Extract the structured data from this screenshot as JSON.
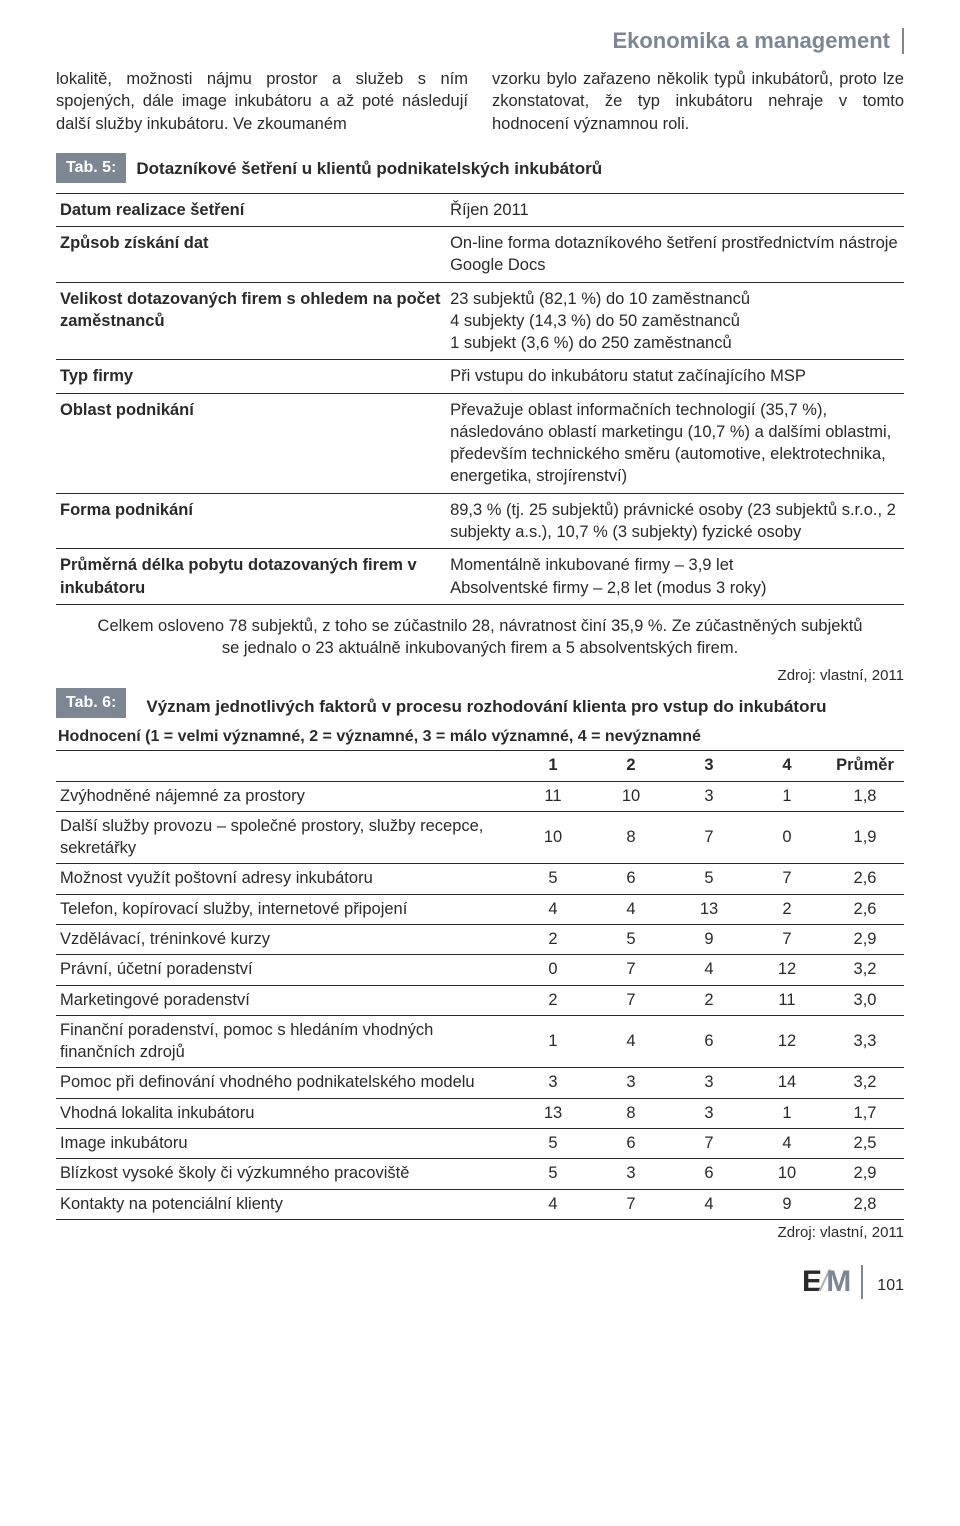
{
  "header": {
    "title": "Ekonomika a management"
  },
  "intro": {
    "left": "lokalitě, možnosti nájmu prostor a služeb s ním spojených, dále image inkubátoru a až poté následují další služby inkubátoru. Ve zkoumaném",
    "right": "vzorku bylo zařazeno několik typů inkubátorů, proto lze zkonstatovat, že typ inkubátoru nehraje v tomto hodnocení významnou roli."
  },
  "tab5": {
    "badge": "Tab. 5:",
    "title": "Dotazníkové šetření u klientů podnikatelských inkubátorů",
    "rows": [
      {
        "label": "Datum realizace šetření",
        "value": "Říjen 2011"
      },
      {
        "label": "Způsob získání dat",
        "value": "On-line forma dotazníkového šetření prostřednictvím nástroje Google Docs"
      },
      {
        "label": "Velikost dotazovaných firem s ohledem na počet zaměstnanců",
        "value": "23 subjektů (82,1 %) do 10 zaměstnanců\n4 subjekty (14,3 %) do 50 zaměstnanců\n1 subjekt (3,6 %) do 250 zaměstnanců"
      },
      {
        "label": "Typ firmy",
        "value": "Při vstupu do inkubátoru statut začínajícího MSP"
      },
      {
        "label": "Oblast podnikání",
        "value": "Převažuje oblast informačních technologií (35,7 %), následováno oblastí marketingu (10,7 %) a dalšími oblastmi, především technického směru (automotive, elektrotechnika, energetika, strojírenství)"
      },
      {
        "label": "Forma podnikání",
        "value": "89,3 % (tj. 25 subjektů) právnické osoby (23 subjektů s.r.o., 2 subjekty a.s.), 10,7 % (3 subjekty) fyzické osoby"
      },
      {
        "label": "Průměrná délka pobytu dotazovaných firem v inkubátoru",
        "value": "Momentálně inkubované firmy – 3,9 let\nAbsolventské firmy – 2,8 let (modus 3 roky)"
      }
    ],
    "footnote": "Celkem osloveno 78 subjektů, z toho se zúčastnilo 28, návratnost činí 35,9 %. Ze zúčastněných subjektů se jednalo o 23 aktuálně inkubovaných firem a 5 absolventských firem.",
    "source": "Zdroj: vlastní, 2011"
  },
  "tab6": {
    "badge": "Tab. 6:",
    "title": "Význam jednotlivých faktorů v procesu rozhodování klienta pro vstup do inkubátoru",
    "caption": "Hodnocení (1 = velmi významné, 2 = významné, 3 = málo významné, 4 = nevýznamné",
    "columns": [
      "",
      "1",
      "2",
      "3",
      "4",
      "Průměr"
    ],
    "rows": [
      {
        "label": "Zvýhodněné nájemné za prostory",
        "v": [
          "11",
          "10",
          "3",
          "1",
          "1,8"
        ]
      },
      {
        "label": "Další služby provozu – společné prostory, služby recepce, sekretářky",
        "v": [
          "10",
          "8",
          "7",
          "0",
          "1,9"
        ]
      },
      {
        "label": "Možnost využít poštovní adresy inkubátoru",
        "v": [
          "5",
          "6",
          "5",
          "7",
          "2,6"
        ]
      },
      {
        "label": "Telefon, kopírovací služby, internetové připojení",
        "v": [
          "4",
          "4",
          "13",
          "2",
          "2,6"
        ]
      },
      {
        "label": "Vzdělávací, tréninkové kurzy",
        "v": [
          "2",
          "5",
          "9",
          "7",
          "2,9"
        ]
      },
      {
        "label": "Právní, účetní poradenství",
        "v": [
          "0",
          "7",
          "4",
          "12",
          "3,2"
        ]
      },
      {
        "label": "Marketingové poradenství",
        "v": [
          "2",
          "7",
          "2",
          "11",
          "3,0"
        ]
      },
      {
        "label": "Finanční poradenství, pomoc s hledáním vhodných finančních zdrojů",
        "v": [
          "1",
          "4",
          "6",
          "12",
          "3,3"
        ]
      },
      {
        "label": "Pomoc při definování vhodného podnikatelského modelu",
        "v": [
          "3",
          "3",
          "3",
          "14",
          "3,2"
        ]
      },
      {
        "label": "Vhodná lokalita inkubátoru",
        "v": [
          "13",
          "8",
          "3",
          "1",
          "1,7"
        ]
      },
      {
        "label": "Image inkubátoru",
        "v": [
          "5",
          "6",
          "7",
          "4",
          "2,5"
        ]
      },
      {
        "label": "Blízkost vysoké školy či výzkumného pracoviště",
        "v": [
          "5",
          "3",
          "6",
          "10",
          "2,9"
        ]
      },
      {
        "label": "Kontakty na potenciální klienty",
        "v": [
          "4",
          "7",
          "4",
          "9",
          "2,8"
        ]
      }
    ],
    "source": "Zdroj: vlastní, 2011"
  },
  "footer": {
    "page_number": "101"
  }
}
